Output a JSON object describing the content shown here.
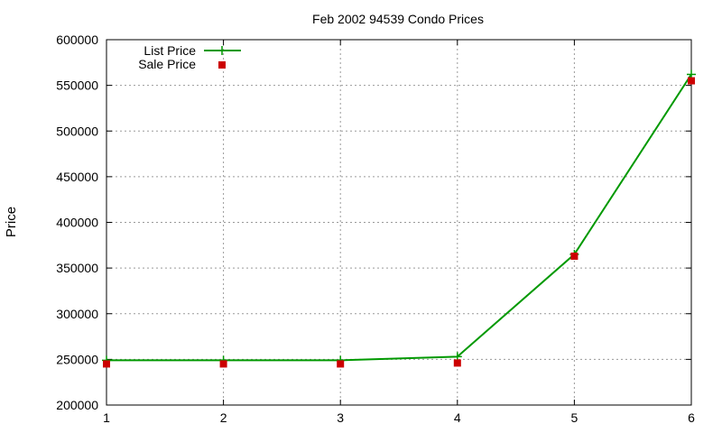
{
  "chart_data": {
    "type": "line",
    "title": "Feb 2002 94539 Condo Prices",
    "xlabel": "",
    "ylabel": "Price",
    "x": [
      1,
      2,
      3,
      4,
      5,
      6
    ],
    "xlim": [
      1,
      6
    ],
    "ylim": [
      200000,
      600000
    ],
    "x_ticks": [
      1,
      2,
      3,
      4,
      5,
      6
    ],
    "y_ticks": [
      200000,
      250000,
      300000,
      350000,
      400000,
      450000,
      500000,
      550000,
      600000
    ],
    "grid": true,
    "legend_position": "top-left",
    "series": [
      {
        "name": "List Price",
        "style": "lines+points",
        "marker": "plus",
        "color": "#009900",
        "values": [
          249000,
          249000,
          249000,
          253000,
          365000,
          562000
        ]
      },
      {
        "name": "Sale Price",
        "style": "points",
        "marker": "square",
        "color": "#cc0000",
        "values": [
          245000,
          245000,
          245000,
          246000,
          363000,
          555000
        ]
      }
    ]
  }
}
